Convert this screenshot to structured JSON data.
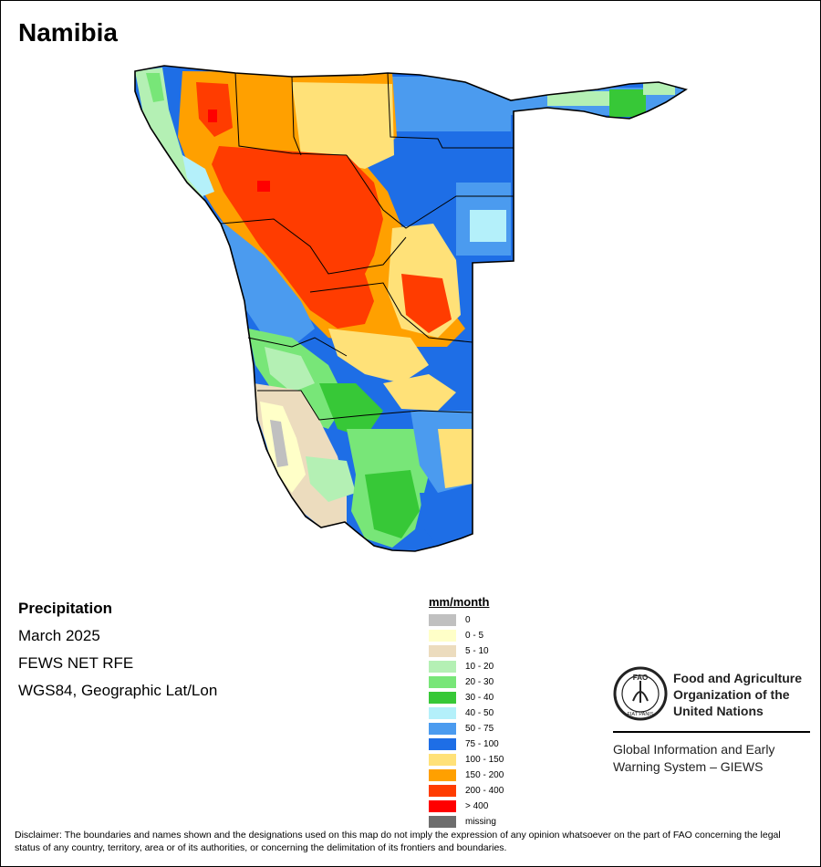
{
  "title": "Namibia",
  "info": {
    "variable": "Precipitation",
    "period": "March 2025",
    "source": "FEWS NET RFE",
    "projection": "WGS84, Geographic Lat/Lon"
  },
  "legend": {
    "unit": "mm/month",
    "classes": [
      {
        "label": "0",
        "color": "#c0c0c0"
      },
      {
        "label": "0 - 5",
        "color": "#ffffc8"
      },
      {
        "label": "5 - 10",
        "color": "#ecdcbe"
      },
      {
        "label": "10 - 20",
        "color": "#b4f0b4"
      },
      {
        "label": "20 - 30",
        "color": "#78e678"
      },
      {
        "label": "30 - 40",
        "color": "#37c837"
      },
      {
        "label": "40 - 50",
        "color": "#b4f0fa"
      },
      {
        "label": "50 - 75",
        "color": "#4b9bef"
      },
      {
        "label": "75 - 100",
        "color": "#1e6ee6"
      },
      {
        "label": "100 - 150",
        "color": "#ffe178"
      },
      {
        "label": "150 - 200",
        "color": "#ffa000"
      },
      {
        "label": "200 - 400",
        "color": "#ff3c00"
      },
      {
        "label": "> 400",
        "color": "#ff0000"
      },
      {
        "label": "missing",
        "color": "#6e6e6e"
      }
    ]
  },
  "organization": {
    "logo_text": "FAO",
    "logo_motto": "FIAT PANIS",
    "name_lines": [
      "Food and Agriculture",
      "Organization of the",
      "United Nations"
    ],
    "system_lines": [
      "Global Information and Early",
      "Warning System – GIEWS"
    ]
  },
  "disclaimer": "Disclaimer: The boundaries and names shown and the designations used on this map do not imply the expression of any opinion whatsoever on the part of FAO concerning the legal status of any country, territory, area or of its authorities, or concerning the delimitation of its frontiers and boundaries."
}
